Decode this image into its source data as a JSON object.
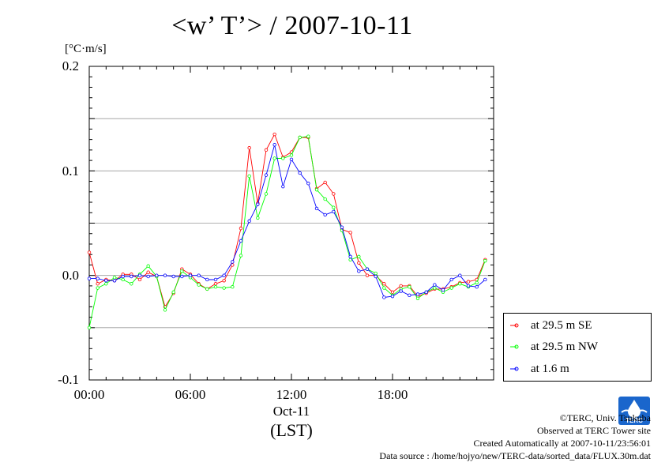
{
  "chart_data": {
    "type": "line",
    "title": "<w’ T’> / 2007-10-11",
    "ylabel": "[°C·m/s]",
    "xlabel": "(LST)",
    "x_date_label": "Oct-11",
    "xlim": [
      0,
      24
    ],
    "ylim": [
      -0.1,
      0.2
    ],
    "yticks": [
      "-0.1",
      "0.0",
      "0.1",
      "0.2"
    ],
    "ytick_values": [
      -0.1,
      0.0,
      0.1,
      0.2
    ],
    "xticks": [
      "00:00",
      "06:00",
      "12:00",
      "18:00"
    ],
    "xtick_values": [
      0,
      6,
      12,
      18
    ],
    "grid": true,
    "legend_position": "lower-right outside plot",
    "x": [
      0.0,
      0.5,
      1.0,
      1.5,
      2.0,
      2.5,
      3.0,
      3.5,
      4.0,
      4.5,
      5.0,
      5.5,
      6.0,
      6.5,
      7.0,
      7.5,
      8.0,
      8.5,
      9.0,
      9.5,
      10.0,
      10.5,
      11.0,
      11.5,
      12.0,
      12.5,
      13.0,
      13.5,
      14.0,
      14.5,
      15.0,
      15.5,
      16.0,
      16.5,
      17.0,
      17.5,
      18.0,
      18.5,
      19.0,
      19.5,
      20.0,
      20.5,
      21.0,
      21.5,
      22.0,
      22.5,
      23.0,
      23.5
    ],
    "series": [
      {
        "name": "at 29.5 m SE",
        "color": "#ff0000",
        "values": [
          0.022,
          -0.008,
          -0.004,
          -0.005,
          0.001,
          0.001,
          -0.004,
          0.003,
          -0.001,
          -0.03,
          -0.017,
          0.006,
          0.001,
          -0.008,
          -0.013,
          -0.008,
          -0.005,
          0.01,
          0.045,
          0.122,
          0.069,
          0.12,
          0.135,
          0.113,
          0.118,
          0.132,
          0.132,
          0.083,
          0.089,
          0.078,
          0.044,
          0.041,
          0.012,
          0.0,
          0.0,
          -0.008,
          -0.016,
          -0.01,
          -0.01,
          -0.02,
          -0.017,
          -0.013,
          -0.013,
          -0.011,
          -0.007,
          -0.006,
          -0.004,
          0.015
        ]
      },
      {
        "name": "at 29.5 m NW",
        "color": "#00ff00",
        "values": [
          -0.05,
          -0.012,
          -0.008,
          -0.002,
          -0.004,
          -0.008,
          0.001,
          0.009,
          -0.001,
          -0.033,
          -0.016,
          0.004,
          -0.002,
          -0.009,
          -0.013,
          -0.011,
          -0.012,
          -0.011,
          0.019,
          0.095,
          0.055,
          0.078,
          0.112,
          0.112,
          0.115,
          0.132,
          0.133,
          0.082,
          0.073,
          0.065,
          0.043,
          0.015,
          0.018,
          0.006,
          0.002,
          -0.012,
          -0.019,
          -0.013,
          -0.011,
          -0.022,
          -0.016,
          -0.012,
          -0.016,
          -0.012,
          -0.008,
          -0.011,
          -0.007,
          0.014
        ]
      },
      {
        "name": "at 1.6 m",
        "color": "#0000ff",
        "values": [
          -0.003,
          -0.003,
          -0.005,
          -0.005,
          -0.001,
          -0.001,
          0.0,
          -0.001,
          0.0,
          0.0,
          -0.001,
          -0.001,
          0.0,
          0.0,
          -0.004,
          -0.004,
          0.0,
          0.013,
          0.033,
          0.052,
          0.068,
          0.096,
          0.125,
          0.085,
          0.111,
          0.098,
          0.088,
          0.064,
          0.058,
          0.061,
          0.046,
          0.018,
          0.004,
          0.006,
          -0.001,
          -0.021,
          -0.02,
          -0.015,
          -0.019,
          -0.018,
          -0.016,
          -0.009,
          -0.014,
          -0.004,
          0.0,
          -0.01,
          -0.011,
          -0.004
        ]
      }
    ]
  },
  "credits": {
    "line1": "©TERC, Univ. Tsukuba",
    "line2": "Observed at TERC Tower site",
    "line3": "Created Automatically at 2007-10-11/23:56:01",
    "line4": "Data source : /home/hojyo/new/TERC-data/sorted_data/FLUX.30m.dat"
  },
  "logo": {
    "text": "TERC",
    "color": "#1a66cc"
  }
}
